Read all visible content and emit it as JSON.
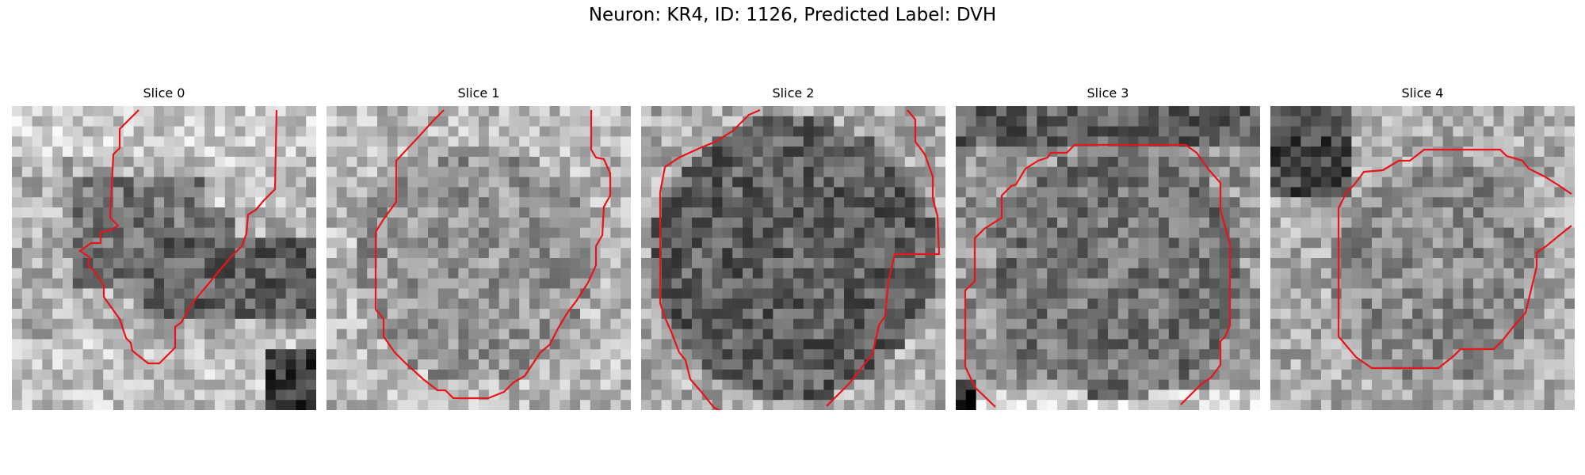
{
  "figure": {
    "title": "Neuron: KR4, ID: 1126, Predicted Label: DVH"
  },
  "contour_color": "#e8141a",
  "panels": [
    {
      "id": "slice-0",
      "title": "Slice 0"
    },
    {
      "id": "slice-1",
      "title": "Slice 1"
    },
    {
      "id": "slice-2",
      "title": "Slice 2"
    },
    {
      "id": "slice-3",
      "title": "Slice 3"
    },
    {
      "id": "slice-4",
      "title": "Slice 4"
    }
  ]
}
